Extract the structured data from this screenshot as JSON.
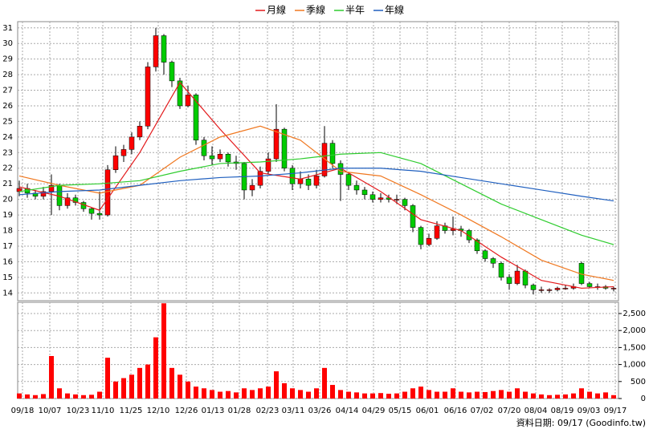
{
  "chart_data": {
    "type": "candlestick",
    "xlim": [
      -0.2,
      74.6
    ],
    "xticks": [
      {
        "value": 0.4,
        "label": "09/18"
      },
      {
        "value": 3.8,
        "label": "10/07"
      },
      {
        "value": 7.3,
        "label": "10/23"
      },
      {
        "value": 10.4,
        "label": "11/10"
      },
      {
        "value": 13.9,
        "label": "11/25"
      },
      {
        "value": 17.3,
        "label": "12/10"
      },
      {
        "value": 20.8,
        "label": "12/26"
      },
      {
        "value": 24.1,
        "label": "01/13"
      },
      {
        "value": 27.4,
        "label": "01/28"
      },
      {
        "value": 30.9,
        "label": "02/23"
      },
      {
        "value": 34.1,
        "label": "03/11"
      },
      {
        "value": 37.4,
        "label": "03/26"
      },
      {
        "value": 40.8,
        "label": "04/14"
      },
      {
        "value": 44.1,
        "label": "04/29"
      },
      {
        "value": 47.4,
        "label": "05/15"
      },
      {
        "value": 50.8,
        "label": "06/01"
      },
      {
        "value": 54.3,
        "label": "06/16"
      },
      {
        "value": 57.6,
        "label": "07/02"
      },
      {
        "value": 61,
        "label": "07/20"
      },
      {
        "value": 64.3,
        "label": "08/04"
      },
      {
        "value": 67.6,
        "label": "08/19"
      },
      {
        "value": 70.9,
        "label": "09/03"
      },
      {
        "value": 74.2,
        "label": "09/17"
      }
    ],
    "ylim": [
      13.5,
      31.4
    ],
    "yticks": [
      14,
      15,
      16,
      17,
      18,
      19,
      20,
      21,
      22,
      23,
      24,
      25,
      26,
      27,
      28,
      29,
      30,
      31
    ],
    "grid": true,
    "up_color": "#ff0000",
    "down_color": "#00cc00",
    "open": [
      20.5,
      20.7,
      20.4,
      20.2,
      20.5,
      20.9,
      19.6,
      20.1,
      19.8,
      19.4,
      19.1,
      19.0,
      21.9,
      22.8,
      23.2,
      24.0,
      24.7,
      28.5,
      30.5,
      28.8,
      27.6,
      26.0,
      26.7,
      23.8,
      22.8,
      22.6,
      22.9,
      22.4,
      22.3,
      20.6,
      20.9,
      21.8,
      22.6,
      24.5,
      22.0,
      21.0,
      21.3,
      20.9,
      21.5,
      23.6,
      22.3,
      21.6,
      20.9,
      20.6,
      20.3,
      20.0,
      20.1,
      20.0,
      20.0,
      19.6,
      18.2,
      17.1,
      17.5,
      18.3,
      18.0,
      18.1,
      18.0,
      17.4,
      16.7,
      16.2,
      15.9,
      15.0,
      14.6,
      15.4,
      14.5,
      14.2,
      14.2,
      14.2,
      14.3,
      14.3,
      15.9,
      14.6,
      14.4,
      14.4,
      14.3
    ],
    "high": [
      21.2,
      21.0,
      20.6,
      20.8,
      21.6,
      21.0,
      20.4,
      20.3,
      19.9,
      19.5,
      20.5,
      22.2,
      23.4,
      23.5,
      24.3,
      25.0,
      28.8,
      31.0,
      30.6,
      28.9,
      27.8,
      27.3,
      26.8,
      24.0,
      23.4,
      23.2,
      23.0,
      22.8,
      22.4,
      21.3,
      22.1,
      23.0,
      26.1,
      24.6,
      22.2,
      21.8,
      21.6,
      21.9,
      24.7,
      23.8,
      22.5,
      21.7,
      21.2,
      20.8,
      20.5,
      20.4,
      20.3,
      20.3,
      20.1,
      19.7,
      18.3,
      17.8,
      18.6,
      18.5,
      18.9,
      18.3,
      18.1,
      17.5,
      16.8,
      16.3,
      16.0,
      15.2,
      15.8,
      15.5,
      14.6,
      14.4,
      14.3,
      14.4,
      14.5,
      14.6,
      16.0,
      14.7,
      14.6,
      14.5,
      14.4
    ],
    "low": [
      20.2,
      20.1,
      20.0,
      20.0,
      19.0,
      19.3,
      19.4,
      19.6,
      19.2,
      18.7,
      18.7,
      18.9,
      21.7,
      22.4,
      22.9,
      23.8,
      24.5,
      28.2,
      28.0,
      27.2,
      25.8,
      25.9,
      23.5,
      22.5,
      22.2,
      22.4,
      22.1,
      21.9,
      20.0,
      20.2,
      20.7,
      21.6,
      22.4,
      21.8,
      20.6,
      20.7,
      20.6,
      20.7,
      21.4,
      22.0,
      19.9,
      20.6,
      20.3,
      20.0,
      19.8,
      19.8,
      19.8,
      19.7,
      19.3,
      17.9,
      16.8,
      17.0,
      17.4,
      17.8,
      17.7,
      17.6,
      17.2,
      16.5,
      16.0,
      15.6,
      14.8,
      14.2,
      14.5,
      14.3,
      13.9,
      14.0,
      14.0,
      14.1,
      14.2,
      14.2,
      14.5,
      14.3,
      14.2,
      14.2,
      14.1
    ],
    "close": [
      20.7,
      20.4,
      20.2,
      20.5,
      20.9,
      19.6,
      20.1,
      19.8,
      19.4,
      19.1,
      19.0,
      21.9,
      22.8,
      23.2,
      24.0,
      24.7,
      28.5,
      30.5,
      28.8,
      27.6,
      26.0,
      26.7,
      23.8,
      22.8,
      22.6,
      22.9,
      22.4,
      22.3,
      20.6,
      20.9,
      21.8,
      22.6,
      24.5,
      22.0,
      21.0,
      21.3,
      20.9,
      21.5,
      23.6,
      22.3,
      21.6,
      20.9,
      20.6,
      20.3,
      20.0,
      20.1,
      20.0,
      20.0,
      19.6,
      18.2,
      17.1,
      17.5,
      18.3,
      18.0,
      18.1,
      18.0,
      17.4,
      16.7,
      16.2,
      15.9,
      15.0,
      14.6,
      15.4,
      14.5,
      14.2,
      14.2,
      14.2,
      14.3,
      14.3,
      14.4,
      14.6,
      14.4,
      14.4,
      14.3,
      14.3
    ],
    "ma_x": [
      0,
      5,
      10,
      15,
      20,
      25,
      30,
      35,
      40,
      45,
      50,
      55,
      60,
      65,
      70,
      74
    ],
    "series": [
      {
        "name": "月線",
        "color": "#e31a1c",
        "values": [
          20.8,
          20.2,
          19.3,
          23.0,
          27.5,
          24.5,
          21.7,
          21.3,
          22.0,
          20.5,
          18.7,
          18.0,
          16.3,
          14.8,
          14.3,
          14.4
        ]
      },
      {
        "name": "季線",
        "color": "#f07820",
        "values": [
          21.5,
          20.9,
          20.4,
          20.9,
          22.7,
          24.0,
          24.7,
          23.8,
          21.8,
          21.5,
          20.3,
          19.0,
          17.6,
          16.1,
          15.2,
          14.8
        ]
      },
      {
        "name": "半年",
        "color": "#2ecc2e",
        "values": [
          20.5,
          20.9,
          21.0,
          21.2,
          21.8,
          22.3,
          22.4,
          22.6,
          22.9,
          23.0,
          22.3,
          21.0,
          19.7,
          18.7,
          17.7,
          17.1
        ]
      },
      {
        "name": "年線",
        "color": "#1f5fbf",
        "values": [
          20.3,
          20.5,
          20.6,
          20.9,
          21.2,
          21.4,
          21.5,
          21.7,
          22.0,
          22.0,
          21.8,
          21.4,
          21.0,
          20.6,
          20.2,
          19.9
        ]
      }
    ],
    "volume": {
      "color": "#ff0000",
      "ylim": [
        0,
        2830
      ],
      "yticks": [
        0,
        500,
        {
          "value": 1000,
          "label": "1,000"
        },
        {
          "value": 1500,
          "label": "1,500"
        },
        {
          "value": 2000,
          "label": "2,000"
        },
        {
          "value": 2500,
          "label": "2,500"
        }
      ],
      "values": [
        150,
        120,
        100,
        130,
        1250,
        300,
        150,
        120,
        100,
        110,
        200,
        1200,
        500,
        600,
        700,
        900,
        1000,
        1800,
        2800,
        900,
        700,
        500,
        350,
        300,
        250,
        200,
        220,
        180,
        300,
        250,
        300,
        350,
        800,
        450,
        300,
        250,
        200,
        300,
        900,
        400,
        250,
        200,
        180,
        150,
        150,
        160,
        140,
        150,
        200,
        300,
        350,
        250,
        200,
        200,
        300,
        200,
        180,
        200,
        190,
        220,
        250,
        200,
        300,
        200,
        150,
        120,
        100,
        110,
        120,
        150,
        300,
        200,
        150,
        180,
        100
      ]
    },
    "footer": "資料日期: 09/17 (Goodinfo.tw)"
  }
}
